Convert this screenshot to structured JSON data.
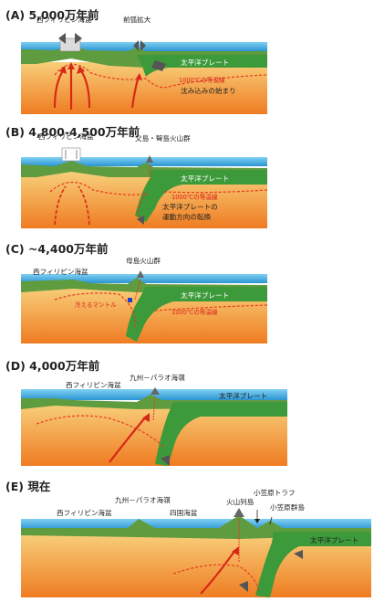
{
  "panels": [
    {
      "title": "(A) 5,000万年前",
      "labels": {
        "basin": "西フィリピン海盆",
        "forearc": "前弧拡大",
        "plate": "太平洋プレート",
        "isotherm": "1000℃の等温線",
        "sinking": "沈み込みの始まり"
      }
    },
    {
      "title": "(B) 4,800-4,500万年前",
      "labels": {
        "basin": "西フィリピン海盆",
        "volcano": "父島・聟島火山群",
        "plate": "太平洋プレート",
        "isotherm": "1000℃の等温線",
        "motion_1": "太平洋プレートの",
        "motion_2": "運動方向の転換"
      }
    },
    {
      "title": "(C) ~4,400万年前",
      "labels": {
        "basin": "西フィリピン海盆",
        "volcano": "母島火山群",
        "plate": "太平洋プレート",
        "cold_mantle": "冷えるマントル",
        "isotherm": "1000℃の等温線"
      }
    },
    {
      "title": "(D) 4,000万年前",
      "labels": {
        "basin": "西フィリピン海盆",
        "ridge": "九州－パラオ海嶺",
        "plate": "太平洋プレート"
      }
    },
    {
      "title": "(E) 現在",
      "labels": {
        "ridge": "九州－パラオ海嶺",
        "basin": "西フィリピン海盆",
        "shikoku": "四国海盆",
        "arc": "火山列島",
        "trough": "小笠原トラフ",
        "islands": "小笠原群島",
        "plate": "太平洋プレート"
      }
    }
  ],
  "colors": {
    "sea": "#4fb6e6",
    "sea_dark": "#1e7fc0",
    "plate": "#3c9a3a",
    "plate_light": "#7cc15a",
    "crust": "#5e9a3e",
    "mantle_top": "#f7c26b",
    "mantle_bottom": "#ef7d22",
    "isotherm": "#e63a1f",
    "arrow": "#d82817"
  },
  "icons": [
    "spreading-arrows-icon",
    "volcano-icon",
    "plate-motion-arrow-icon",
    "ship-icon"
  ]
}
